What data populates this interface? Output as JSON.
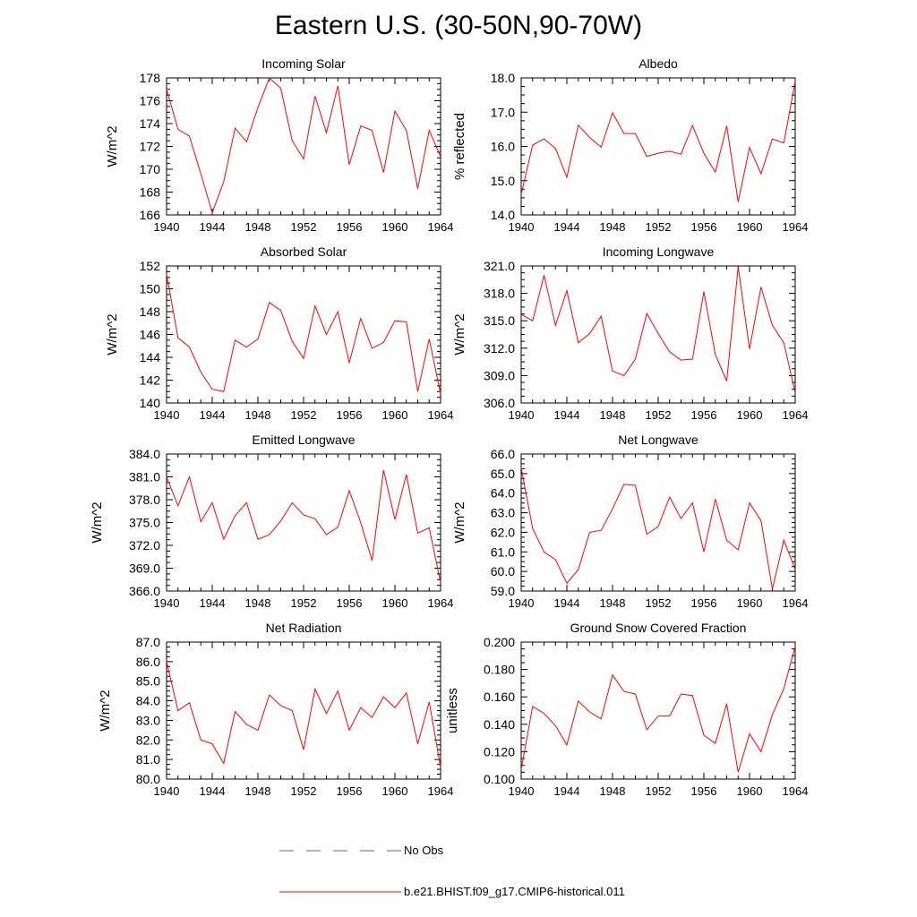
{
  "title": "Eastern U.S. (30-50N,90-70W)",
  "legend": [
    {
      "label": "No Obs",
      "color": "#5b5bd6",
      "style": "dashed"
    },
    {
      "label": "b.e21.BHIST.f09_g17.CMIP6-historical.011",
      "color": "#ff0000",
      "style": "solid"
    }
  ],
  "chart_data": [
    {
      "type": "line",
      "title": "Incoming Solar",
      "ylabel": "W/m^2",
      "xlim": [
        1940,
        1964
      ],
      "ylim": [
        166,
        178
      ],
      "xticks": [
        1940,
        1944,
        1948,
        1952,
        1956,
        1960,
        1964
      ],
      "xtick_labels": [
        "1940",
        "1944",
        "1948",
        "1952",
        "1956",
        "1960",
        "1964"
      ],
      "yticks": [
        166,
        168,
        170,
        172,
        174,
        176,
        178
      ],
      "ytick_labels": [
        "166",
        "168",
        "170",
        "172",
        "174",
        "176",
        "178"
      ],
      "series": [
        {
          "name": "b.e21.BHIST.f09_g17.CMIP6-historical.011",
          "color": "#ff0000",
          "x": [
            1940,
            1941,
            1942,
            1943,
            1944,
            1945,
            1946,
            1947,
            1948,
            1949,
            1950,
            1951,
            1952,
            1953,
            1954,
            1955,
            1956,
            1957,
            1958,
            1959,
            1960,
            1961,
            1962,
            1963,
            1964
          ],
          "y": [
            177.0,
            173.5,
            172.9,
            169.6,
            166.2,
            168.9,
            173.6,
            172.4,
            175.4,
            178.0,
            177.1,
            172.5,
            170.9,
            176.4,
            173.2,
            177.3,
            170.4,
            173.8,
            173.4,
            169.7,
            175.1,
            173.4,
            168.3,
            173.4,
            171.1
          ]
        }
      ]
    },
    {
      "type": "line",
      "title": "Albedo",
      "ylabel": "% reflected",
      "xlim": [
        1940,
        1964
      ],
      "ylim": [
        14.0,
        18.0
      ],
      "xticks": [
        1940,
        1944,
        1948,
        1952,
        1956,
        1960,
        1964
      ],
      "xtick_labels": [
        "1940",
        "1944",
        "1948",
        "1952",
        "1956",
        "1960",
        "1964"
      ],
      "yticks": [
        14.0,
        15.0,
        16.0,
        17.0,
        18.0
      ],
      "ytick_labels": [
        "14.0",
        "15.0",
        "16.0",
        "17.0",
        "18.0"
      ],
      "series": [
        {
          "name": "b.e21.BHIST.f09_g17.CMIP6-historical.011",
          "color": "#ff0000",
          "x": [
            1940,
            1941,
            1942,
            1943,
            1944,
            1945,
            1946,
            1947,
            1948,
            1949,
            1950,
            1951,
            1952,
            1953,
            1954,
            1955,
            1956,
            1957,
            1958,
            1959,
            1960,
            1961,
            1962,
            1963,
            1964
          ],
          "y": [
            14.6,
            16.04,
            16.22,
            15.94,
            15.1,
            16.62,
            16.26,
            15.98,
            16.98,
            16.38,
            16.37,
            15.71,
            15.8,
            15.86,
            15.77,
            16.61,
            15.8,
            15.25,
            16.6,
            14.38,
            15.97,
            15.2,
            16.22,
            16.1,
            17.9
          ]
        }
      ]
    },
    {
      "type": "line",
      "title": "Absorbed Solar",
      "ylabel": "W/m^2",
      "xlim": [
        1940,
        1964
      ],
      "ylim": [
        140,
        152
      ],
      "xticks": [
        1940,
        1944,
        1948,
        1952,
        1956,
        1960,
        1964
      ],
      "xtick_labels": [
        "1940",
        "1944",
        "1948",
        "1952",
        "1956",
        "1960",
        "1964"
      ],
      "yticks": [
        140,
        142,
        144,
        146,
        148,
        150,
        152
      ],
      "ytick_labels": [
        "140",
        "142",
        "144",
        "146",
        "148",
        "150",
        "152"
      ],
      "series": [
        {
          "name": "b.e21.BHIST.f09_g17.CMIP6-historical.011",
          "color": "#ff0000",
          "x": [
            1940,
            1941,
            1942,
            1943,
            1944,
            1945,
            1946,
            1947,
            1948,
            1949,
            1950,
            1951,
            1952,
            1953,
            1954,
            1955,
            1956,
            1957,
            1958,
            1959,
            1960,
            1961,
            1962,
            1963,
            1964
          ],
          "y": [
            151.3,
            145.7,
            144.9,
            142.7,
            141.2,
            141.0,
            145.5,
            144.9,
            145.6,
            148.8,
            148.1,
            145.4,
            143.9,
            148.5,
            146.0,
            148.0,
            143.5,
            147.4,
            144.8,
            145.3,
            147.2,
            147.1,
            141.0,
            145.6,
            140.8
          ]
        }
      ]
    },
    {
      "type": "line",
      "title": "Incoming Longwave",
      "ylabel": "W/m^2",
      "xlim": [
        1940,
        1964
      ],
      "ylim": [
        306.0,
        321.0
      ],
      "xticks": [
        1940,
        1944,
        1948,
        1952,
        1956,
        1960,
        1964
      ],
      "xtick_labels": [
        "1940",
        "1944",
        "1948",
        "1952",
        "1956",
        "1960",
        "1964"
      ],
      "yticks": [
        306.0,
        309.0,
        312.0,
        315.0,
        318.0,
        321.0
      ],
      "ytick_labels": [
        "306.0",
        "309.0",
        "312.0",
        "315.0",
        "318.0",
        "321.0"
      ],
      "series": [
        {
          "name": "b.e21.BHIST.f09_g17.CMIP6-historical.011",
          "color": "#ff0000",
          "x": [
            1940,
            1941,
            1942,
            1943,
            1944,
            1945,
            1946,
            1947,
            1948,
            1949,
            1950,
            1951,
            1952,
            1953,
            1954,
            1955,
            1956,
            1957,
            1958,
            1959,
            1960,
            1961,
            1962,
            1963,
            1964
          ],
          "y": [
            315.7,
            315.0,
            320.0,
            314.5,
            318.3,
            312.6,
            313.6,
            315.5,
            309.5,
            309.0,
            310.8,
            315.8,
            313.6,
            311.6,
            310.7,
            310.8,
            318.2,
            311.3,
            308.4,
            320.9,
            311.9,
            318.7,
            314.5,
            312.6,
            307.1
          ]
        }
      ]
    },
    {
      "type": "line",
      "title": "Emitted Longwave",
      "ylabel": "W/m^2",
      "xlim": [
        1940,
        1964
      ],
      "ylim": [
        366.0,
        384.0
      ],
      "xticks": [
        1940,
        1944,
        1948,
        1952,
        1956,
        1960,
        1964
      ],
      "xtick_labels": [
        "1940",
        "1944",
        "1948",
        "1952",
        "1956",
        "1960",
        "1964"
      ],
      "yticks": [
        366.0,
        369.0,
        372.0,
        375.0,
        378.0,
        381.0,
        384.0
      ],
      "ytick_labels": [
        "366.0",
        "369.0",
        "372.0",
        "375.0",
        "378.0",
        "381.0",
        "384.0"
      ],
      "series": [
        {
          "name": "b.e21.BHIST.f09_g17.CMIP6-historical.011",
          "color": "#ff0000",
          "x": [
            1940,
            1941,
            1942,
            1943,
            1944,
            1945,
            1946,
            1947,
            1948,
            1949,
            1950,
            1951,
            1952,
            1953,
            1954,
            1955,
            1956,
            1957,
            1958,
            1959,
            1960,
            1961,
            1962,
            1963,
            1964
          ],
          "y": [
            381.0,
            377.2,
            381.0,
            375.1,
            377.6,
            372.8,
            375.9,
            377.6,
            372.8,
            373.4,
            375.2,
            377.6,
            376.0,
            375.5,
            373.4,
            374.4,
            379.2,
            375.0,
            370.0,
            381.9,
            375.4,
            381.3,
            373.6,
            374.3,
            367.1
          ]
        }
      ]
    },
    {
      "type": "line",
      "title": "Net Longwave",
      "ylabel": "W/m^2",
      "xlim": [
        1940,
        1964
      ],
      "ylim": [
        59.0,
        66.0
      ],
      "xticks": [
        1940,
        1944,
        1948,
        1952,
        1956,
        1960,
        1964
      ],
      "xtick_labels": [
        "1940",
        "1944",
        "1948",
        "1952",
        "1956",
        "1960",
        "1964"
      ],
      "yticks": [
        59.0,
        60.0,
        61.0,
        62.0,
        63.0,
        64.0,
        65.0,
        66.0
      ],
      "ytick_labels": [
        "59.0",
        "60.0",
        "61.0",
        "62.0",
        "63.0",
        "64.0",
        "65.0",
        "66.0"
      ],
      "series": [
        {
          "name": "b.e21.BHIST.f09_g17.CMIP6-historical.011",
          "color": "#ff0000",
          "x": [
            1940,
            1941,
            1942,
            1943,
            1944,
            1945,
            1946,
            1947,
            1948,
            1949,
            1950,
            1951,
            1952,
            1953,
            1954,
            1955,
            1956,
            1957,
            1958,
            1959,
            1960,
            1961,
            1962,
            1963,
            1964
          ],
          "y": [
            65.3,
            62.2,
            61.0,
            60.6,
            59.4,
            60.1,
            62.0,
            62.1,
            63.2,
            64.45,
            64.4,
            61.9,
            62.3,
            63.8,
            62.7,
            63.5,
            61.0,
            63.7,
            61.6,
            61.1,
            63.5,
            62.6,
            59.1,
            61.6,
            60.1
          ]
        }
      ]
    },
    {
      "type": "line",
      "title": "Net Radiation",
      "ylabel": "W/m^2",
      "xlim": [
        1940,
        1964
      ],
      "ylim": [
        80.0,
        87.0
      ],
      "xticks": [
        1940,
        1944,
        1948,
        1952,
        1956,
        1960,
        1964
      ],
      "xtick_labels": [
        "1940",
        "1944",
        "1948",
        "1952",
        "1956",
        "1960",
        "1964"
      ],
      "yticks": [
        80.0,
        81.0,
        82.0,
        83.0,
        84.0,
        85.0,
        86.0,
        87.0
      ],
      "ytick_labels": [
        "80.0",
        "81.0",
        "82.0",
        "83.0",
        "84.0",
        "85.0",
        "86.0",
        "87.0"
      ],
      "series": [
        {
          "name": "b.e21.BHIST.f09_g17.CMIP6-historical.011",
          "color": "#ff0000",
          "x": [
            1940,
            1941,
            1942,
            1943,
            1944,
            1945,
            1946,
            1947,
            1948,
            1949,
            1950,
            1951,
            1952,
            1953,
            1954,
            1955,
            1956,
            1957,
            1958,
            1959,
            1960,
            1961,
            1962,
            1963,
            1964
          ],
          "y": [
            86.0,
            83.5,
            83.9,
            82.0,
            81.8,
            80.8,
            83.45,
            82.8,
            82.5,
            84.3,
            83.75,
            83.5,
            81.5,
            84.6,
            83.35,
            84.5,
            82.5,
            83.65,
            83.15,
            84.2,
            83.65,
            84.4,
            81.8,
            83.95,
            80.6
          ]
        }
      ]
    },
    {
      "type": "line",
      "title": "Ground Snow Covered Fraction",
      "ylabel": "unitless",
      "xlim": [
        1940,
        1964
      ],
      "ylim": [
        0.1,
        0.2
      ],
      "xticks": [
        1940,
        1944,
        1948,
        1952,
        1956,
        1960,
        1964
      ],
      "xtick_labels": [
        "1940",
        "1944",
        "1948",
        "1952",
        "1956",
        "1960",
        "1964"
      ],
      "yticks": [
        0.1,
        0.12,
        0.14,
        0.16,
        0.18,
        0.2
      ],
      "ytick_labels": [
        "0.100",
        "0.120",
        "0.140",
        "0.160",
        "0.180",
        "0.200"
      ],
      "series": [
        {
          "name": "b.e21.BHIST.f09_g17.CMIP6-historical.011",
          "color": "#ff0000",
          "x": [
            1940,
            1941,
            1942,
            1943,
            1944,
            1945,
            1946,
            1947,
            1948,
            1949,
            1950,
            1951,
            1952,
            1953,
            1954,
            1955,
            1956,
            1957,
            1958,
            1959,
            1960,
            1961,
            1962,
            1963,
            1964
          ],
          "y": [
            0.107,
            0.153,
            0.148,
            0.139,
            0.125,
            0.157,
            0.149,
            0.144,
            0.176,
            0.164,
            0.162,
            0.136,
            0.146,
            0.146,
            0.162,
            0.161,
            0.132,
            0.126,
            0.155,
            0.105,
            0.133,
            0.12,
            0.147,
            0.166,
            0.197
          ]
        }
      ]
    }
  ]
}
